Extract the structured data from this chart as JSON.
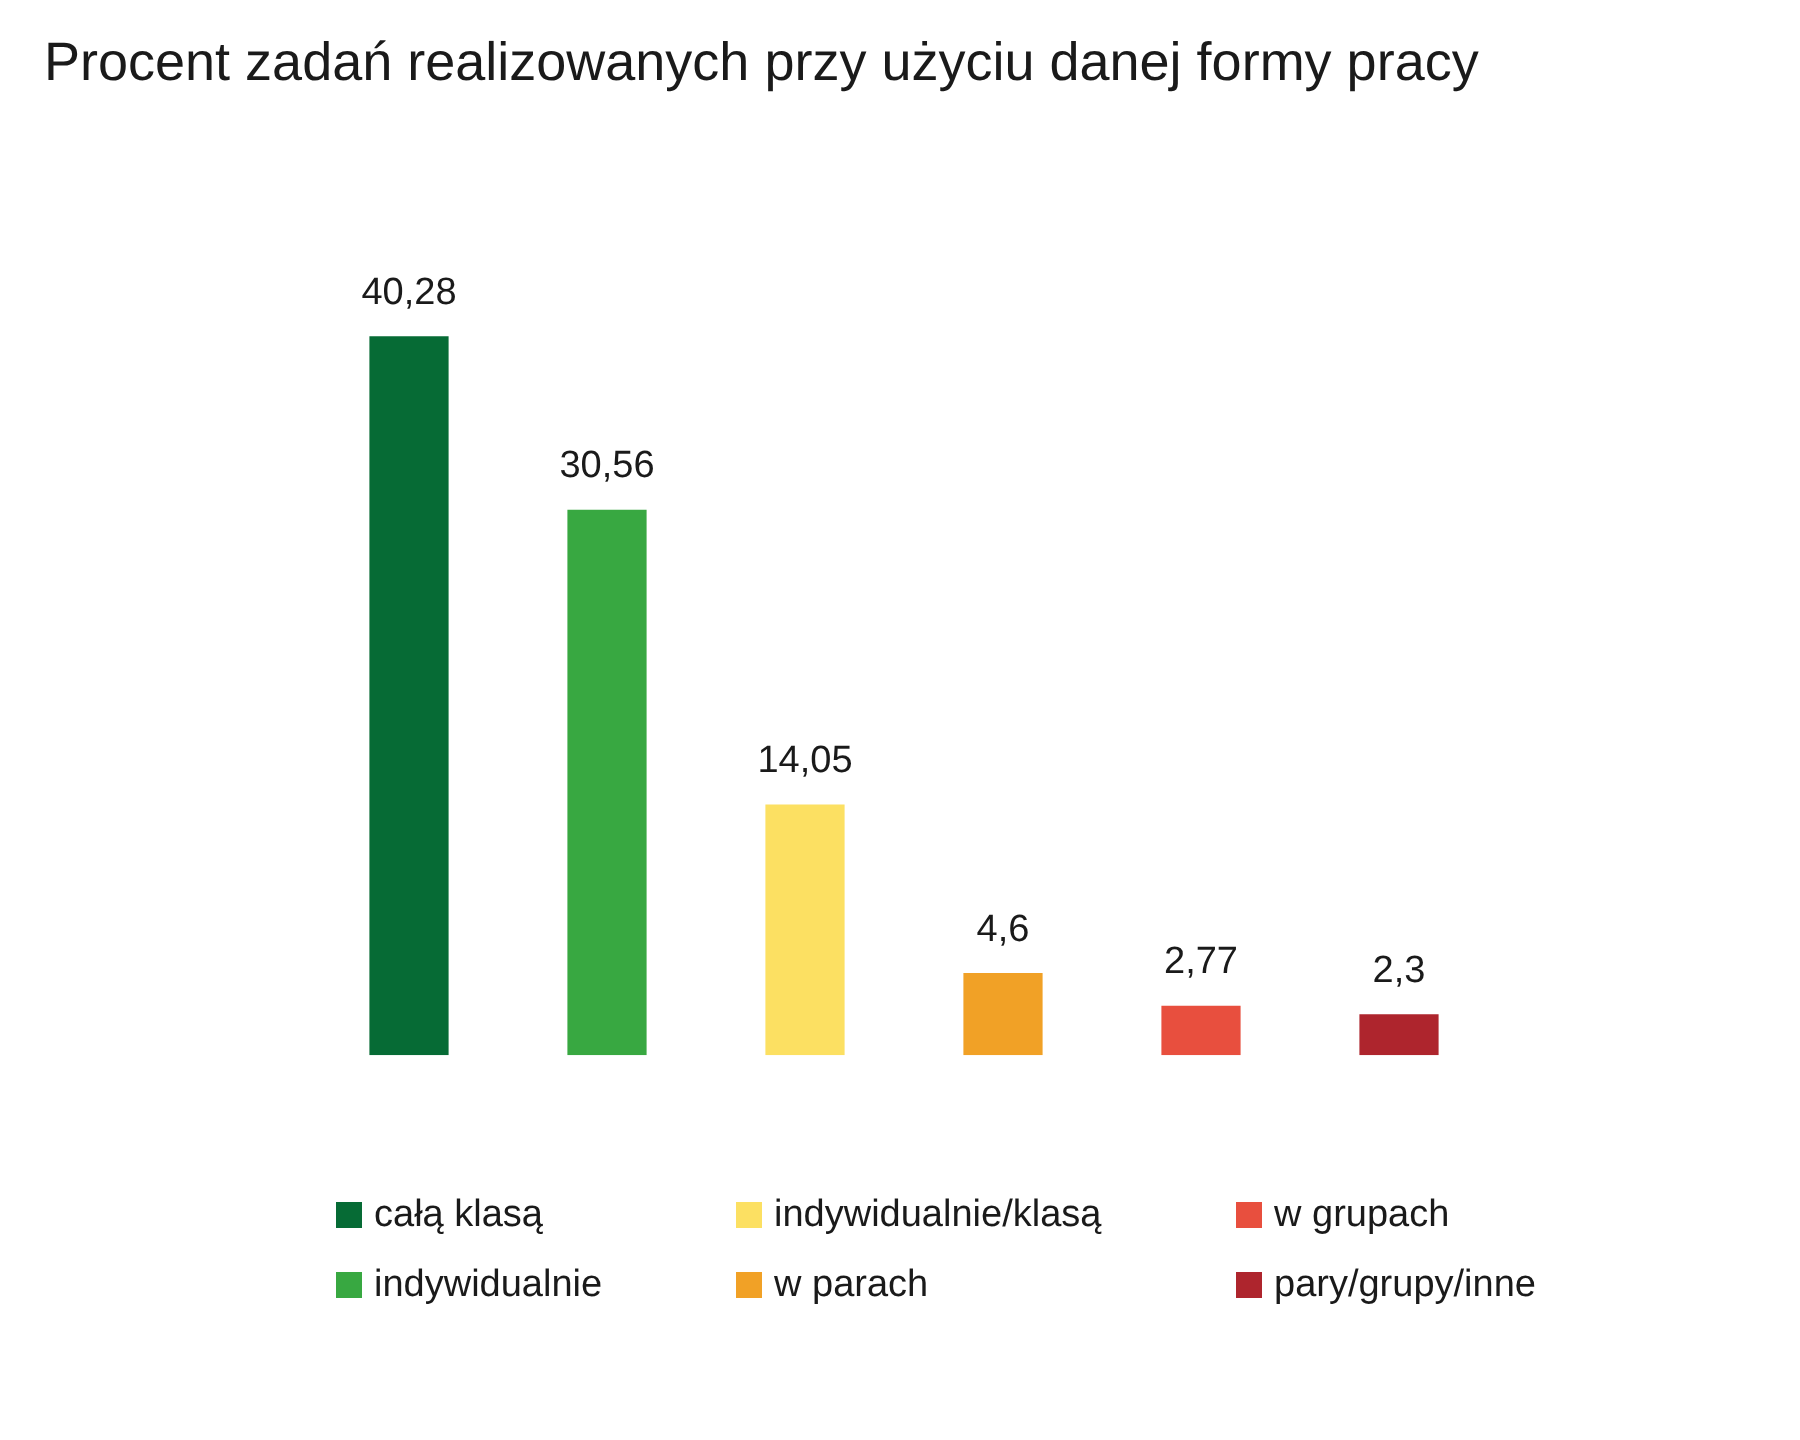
{
  "chart_data": {
    "type": "bar",
    "title": "Procent zadań realizowanych przy użyciu danej formy pracy",
    "categories": [
      null,
      null,
      null,
      null,
      null,
      null
    ],
    "stacked": true,
    "series": [
      {
        "name": "całą klasą",
        "color": "#066b35",
        "values": [
          40.28,
          null,
          null,
          null,
          null,
          null
        ],
        "value_labels": [
          "40,28",
          null,
          null,
          null,
          null,
          null
        ]
      },
      {
        "name": "indywidualnie",
        "color": "#38a841",
        "values": [
          null,
          30.56,
          null,
          null,
          null,
          null
        ],
        "value_labels": [
          null,
          "30,56",
          null,
          null,
          null,
          null
        ]
      },
      {
        "name": "indywidualnie/klasą",
        "color": "#fce062",
        "values": [
          null,
          null,
          14.05,
          null,
          null,
          null
        ],
        "value_labels": [
          null,
          null,
          "14,05",
          null,
          null,
          null
        ]
      },
      {
        "name": "w parach",
        "color": "#f1a126",
        "values": [
          null,
          null,
          null,
          4.6,
          null,
          null
        ],
        "value_labels": [
          null,
          null,
          null,
          "4,6",
          null,
          null
        ]
      },
      {
        "name": "w grupach",
        "color": "#e84f3e",
        "values": [
          null,
          null,
          null,
          null,
          2.77,
          null
        ],
        "value_labels": [
          null,
          null,
          null,
          null,
          "2,77",
          null
        ]
      },
      {
        "name": "pary/grupy/inne",
        "color": "#ae252d",
        "values": [
          null,
          null,
          null,
          null,
          null,
          2.3
        ],
        "value_labels": [
          null,
          null,
          null,
          null,
          null,
          "2,3"
        ]
      }
    ],
    "legend": "bottom",
    "tick_labels": false
  }
}
